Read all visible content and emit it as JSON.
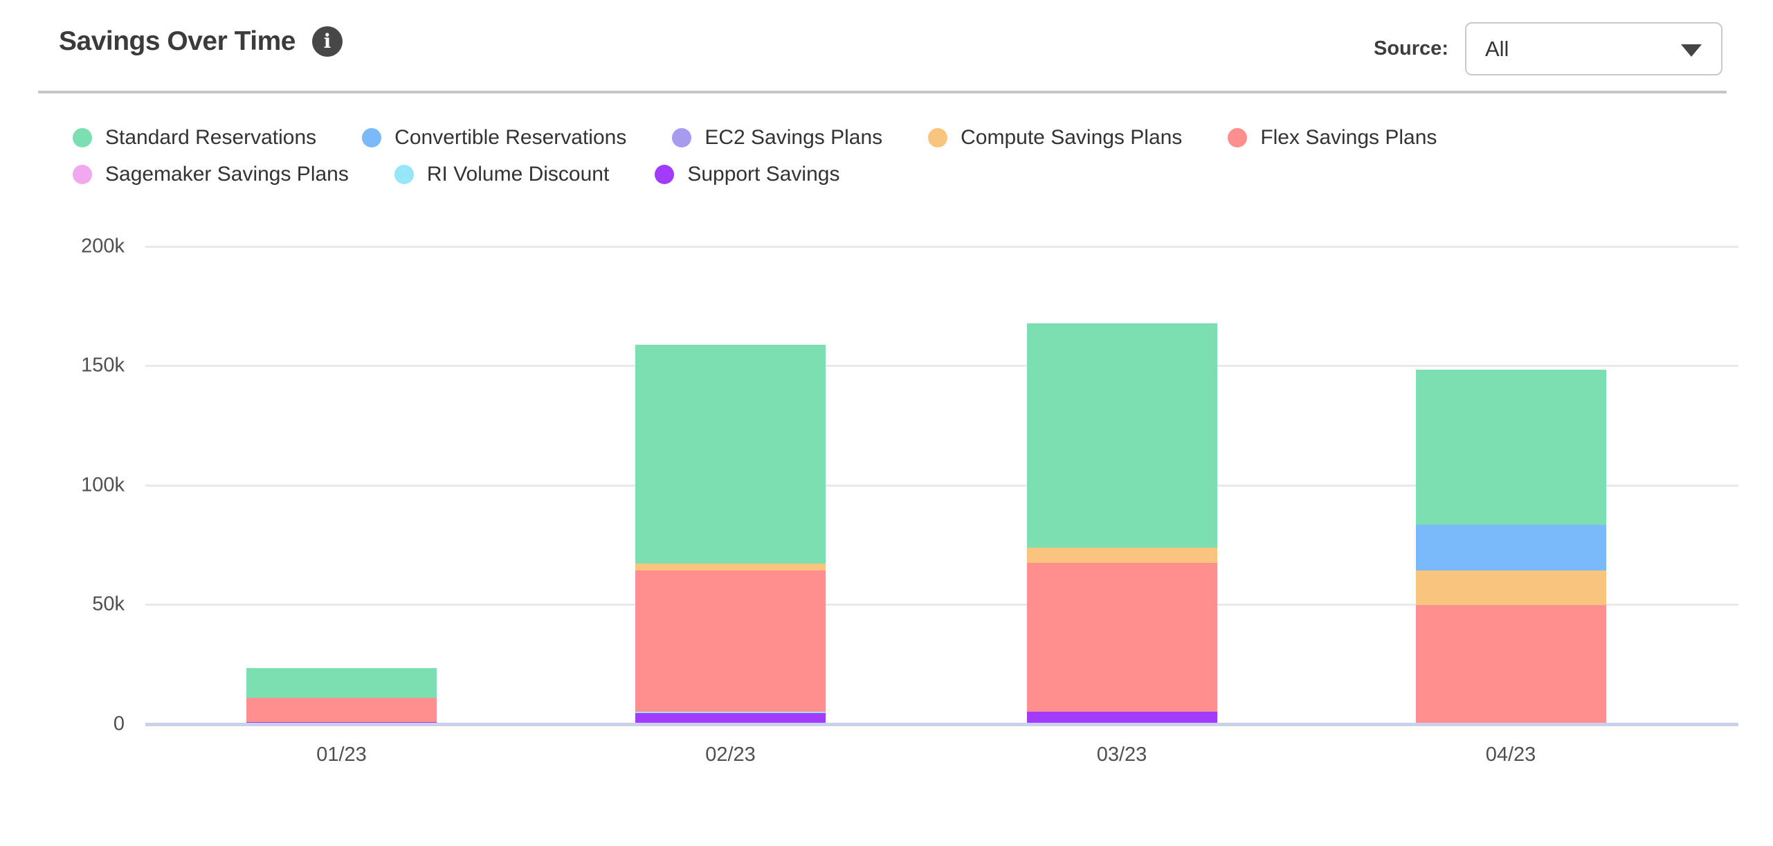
{
  "header": {
    "title": "Savings Over Time",
    "info_icon_glyph": "i",
    "source_label": "Source:",
    "source_value": "All"
  },
  "legend": {
    "rows": [
      [
        "Standard Reservations",
        "Convertible Reservations",
        "EC2 Savings Plans",
        "Compute Savings Plans",
        "Flex Savings Plans"
      ],
      [
        "Sagemaker Savings Plans",
        "RI Volume Discount",
        "Support Savings"
      ]
    ]
  },
  "chart_data": {
    "type": "bar",
    "stacked": true,
    "title": "Savings Over Time",
    "categories": [
      "01/23",
      "02/23",
      "03/23",
      "04/23"
    ],
    "series": [
      {
        "name": "Standard Reservations",
        "color": "#7CDFB2",
        "values": [
          12400,
          91600,
          93800,
          64800
        ]
      },
      {
        "name": "Convertible Reservations",
        "color": "#7ABAFB",
        "values": [
          0,
          0,
          0,
          19300
        ]
      },
      {
        "name": "EC2 Savings Plans",
        "color": "#A79BF0",
        "values": [
          0,
          0,
          0,
          0
        ]
      },
      {
        "name": "Compute Savings Plans",
        "color": "#F9C57E",
        "values": [
          0,
          2900,
          6600,
          14500
        ]
      },
      {
        "name": "Flex Savings Plans",
        "color": "#FF8E8E",
        "values": [
          10000,
          59100,
          62100,
          49700
        ]
      },
      {
        "name": "Sagemaker Savings Plans",
        "color": "#F0A9EF",
        "values": [
          0,
          0,
          0,
          0
        ]
      },
      {
        "name": "RI Volume Discount",
        "color": "#94E6F8",
        "values": [
          0,
          700,
          0,
          0
        ]
      },
      {
        "name": "Support Savings",
        "color": "#A33BFB",
        "values": [
          1000,
          4600,
          5300,
          0
        ]
      }
    ],
    "stack_order": "bottom-to-top is reverse of series order",
    "totals": [
      23400,
      158900,
      167800,
      148300
    ],
    "xlabel": "",
    "ylabel": "",
    "ylim": [
      0,
      200000
    ],
    "yticks": [
      {
        "value": 0,
        "label": "0"
      },
      {
        "value": 50000,
        "label": "50k"
      },
      {
        "value": 100000,
        "label": "100k"
      },
      {
        "value": 150000,
        "label": "150k"
      },
      {
        "value": 200000,
        "label": "200k"
      }
    ],
    "grid": true,
    "legend_position": "top"
  }
}
